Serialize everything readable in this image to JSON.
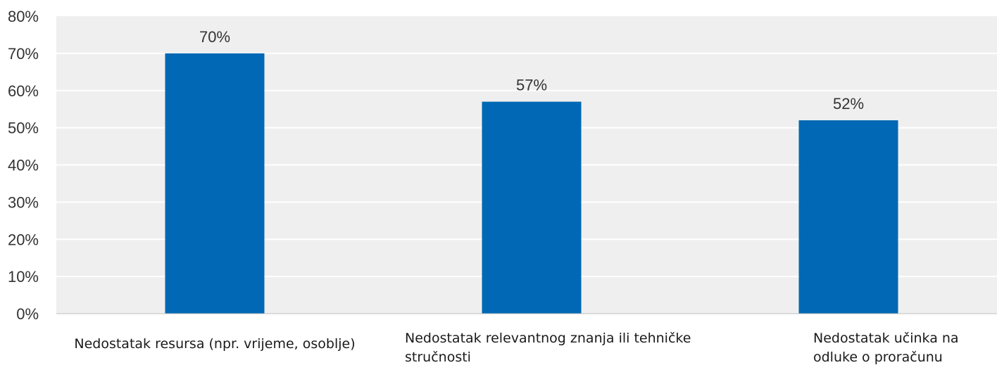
{
  "chart_data": {
    "type": "bar",
    "categories": [
      [
        "Nedostatak resursa (npr. vrijeme, osoblje)"
      ],
      [
        "Nedostatak relevantnog znanja ili tehničke",
        "stručnosti"
      ],
      [
        "Nedostatak učinka na",
        "odluke o proračunu"
      ]
    ],
    "values": [
      70,
      57,
      52
    ],
    "data_labels": [
      "70%",
      "57%",
      "52%"
    ],
    "y_ticks": [
      "0%",
      "10%",
      "20%",
      "30%",
      "40%",
      "50%",
      "60%",
      "70%",
      "80%"
    ],
    "ylim": [
      0,
      80
    ],
    "grid": true,
    "legend": "none",
    "colors": {
      "bar": "#0068b4",
      "plot_background": "#efefef",
      "gridline": "#ffffff",
      "axis": "#bfbfbf"
    }
  }
}
